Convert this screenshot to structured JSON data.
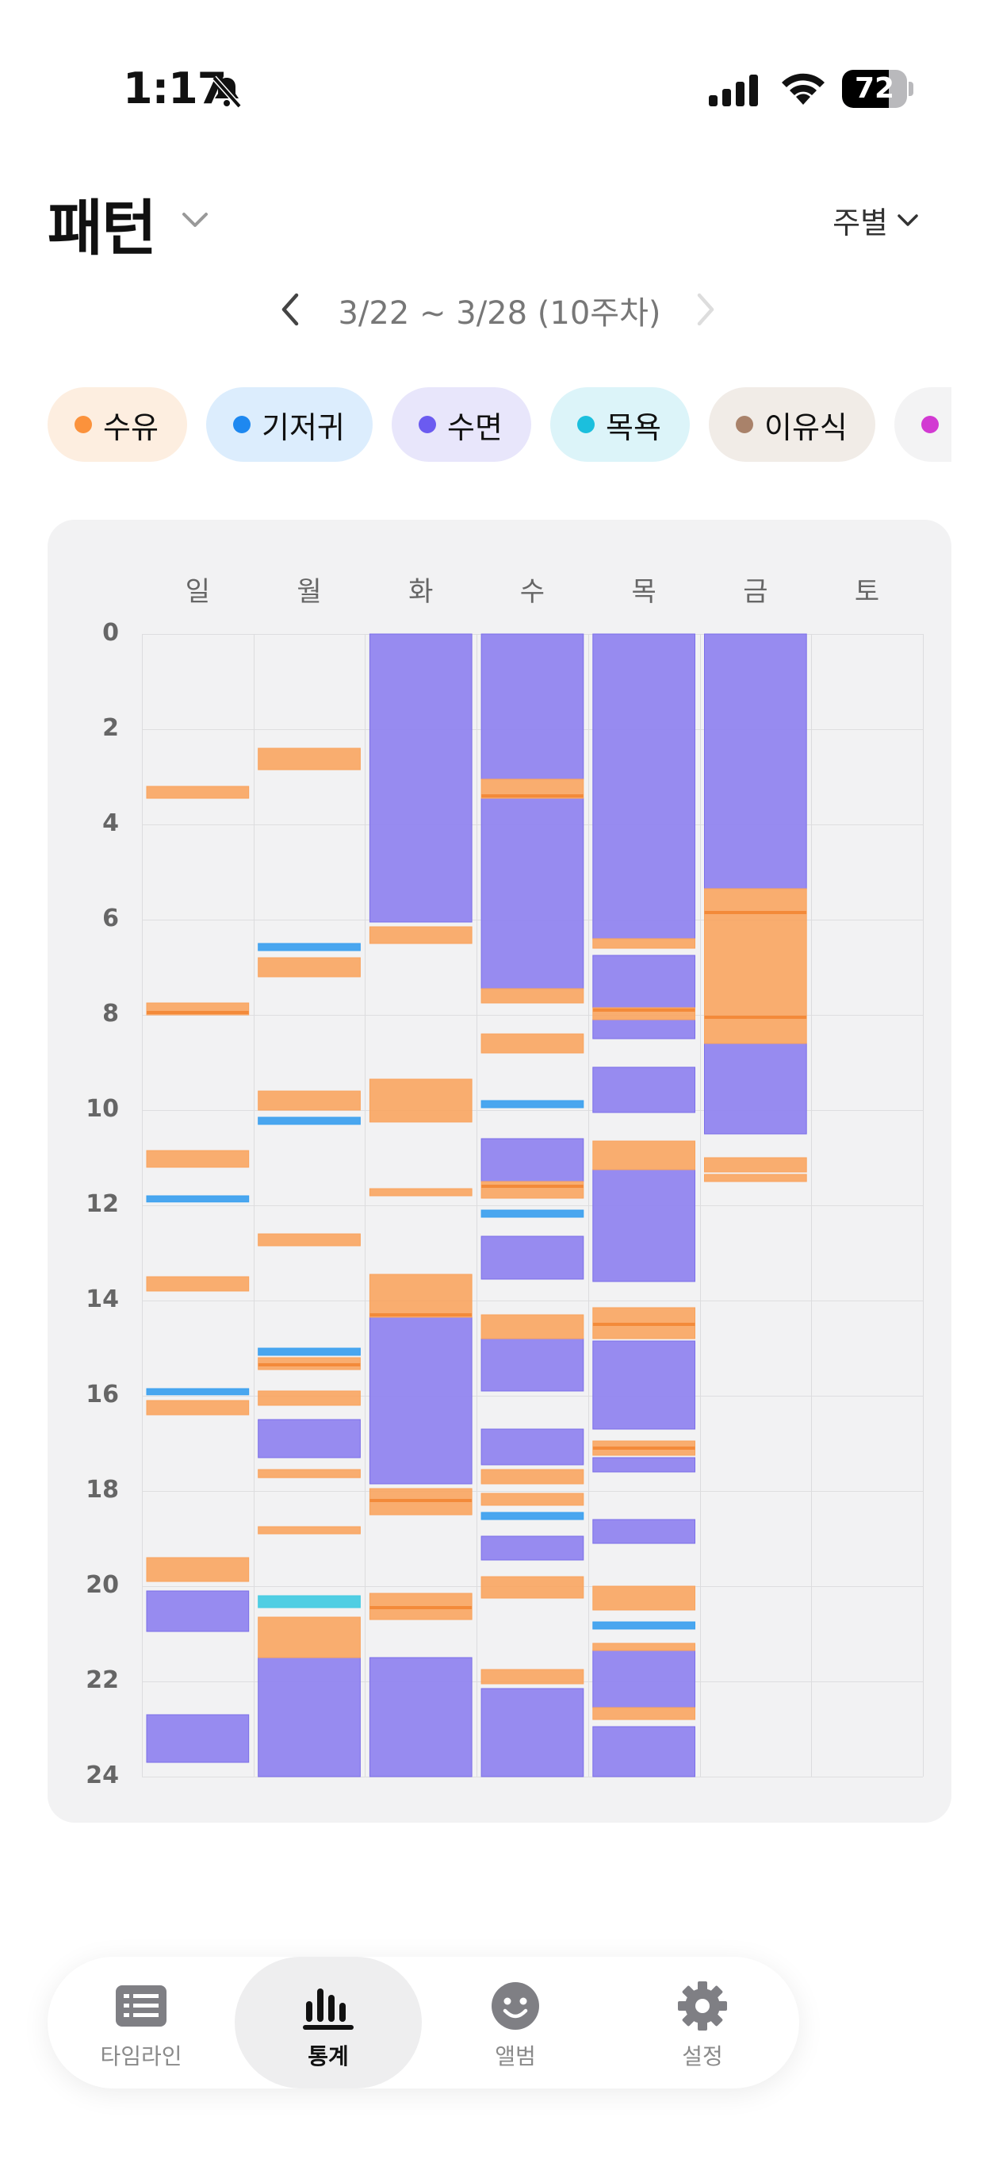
{
  "status_bar": {
    "time": "1:17",
    "battery": "72",
    "battery_level": 0.72,
    "icons": [
      "bell-slash-icon",
      "signal-icon",
      "wifi-icon",
      "battery-icon"
    ]
  },
  "header": {
    "title": "패턴",
    "period": "주별",
    "date_range": "3/22 ~ 3/28 (10주차)"
  },
  "filters": [
    {
      "label": "수유",
      "color": "#fb923c",
      "bg": "#fdeee0"
    },
    {
      "label": "기저귀",
      "color": "#1e88f0",
      "bg": "#dcedfd"
    },
    {
      "label": "수면",
      "color": "#6b5bf0",
      "bg": "#e8e6fb"
    },
    {
      "label": "목욕",
      "color": "#1bbfdd",
      "bg": "#dcf4f9"
    },
    {
      "label": "이유식",
      "color": "#a9826a",
      "bg": "#f1ece7"
    },
    {
      "label": "",
      "color": "#d23ad2",
      "bg": "#f3f3f4"
    }
  ],
  "chart_data": {
    "type": "timeline",
    "days": [
      "일",
      "월",
      "화",
      "수",
      "목",
      "금",
      "토"
    ],
    "y_ticks": [
      "0",
      "2",
      "4",
      "6",
      "8",
      "10",
      "12",
      "14",
      "16",
      "18",
      "20",
      "22",
      "24"
    ],
    "ylim": [
      0,
      24
    ],
    "colors": {
      "feed": "#f9a35c",
      "feed_line": "#f38a3a",
      "diaper": "#3ba0ef",
      "sleep": "#8f82f0",
      "bath": "#42cbe2"
    },
    "events": [
      {
        "day": 0,
        "type": "feed",
        "start": 3.2,
        "end": 3.45
      },
      {
        "day": 0,
        "type": "feed",
        "start": 7.75,
        "end": 8.0
      },
      {
        "day": 0,
        "type": "feed",
        "start": 10.85,
        "end": 11.2
      },
      {
        "day": 0,
        "type": "diaper",
        "start": 11.8,
        "end": 11.93
      },
      {
        "day": 0,
        "type": "feed",
        "start": 13.5,
        "end": 13.8
      },
      {
        "day": 0,
        "type": "diaper",
        "start": 15.85,
        "end": 15.98
      },
      {
        "day": 0,
        "type": "feed",
        "start": 16.1,
        "end": 16.4
      },
      {
        "day": 0,
        "type": "feed",
        "start": 19.4,
        "end": 19.9
      },
      {
        "day": 0,
        "type": "sleep",
        "start": 20.1,
        "end": 20.95
      },
      {
        "day": 0,
        "type": "sleep",
        "start": 22.7,
        "end": 23.7
      },
      {
        "day": 1,
        "type": "feed",
        "start": 2.4,
        "end": 2.85
      },
      {
        "day": 1,
        "type": "diaper",
        "start": 6.5,
        "end": 6.65
      },
      {
        "day": 1,
        "type": "feed",
        "start": 6.8,
        "end": 7.2
      },
      {
        "day": 1,
        "type": "feed",
        "start": 9.6,
        "end": 10.0
      },
      {
        "day": 1,
        "type": "diaper",
        "start": 10.15,
        "end": 10.3
      },
      {
        "day": 1,
        "type": "feed",
        "start": 12.6,
        "end": 12.85
      },
      {
        "day": 1,
        "type": "diaper",
        "start": 15.0,
        "end": 15.15
      },
      {
        "day": 1,
        "type": "feed",
        "start": 15.2,
        "end": 15.45
      },
      {
        "day": 1,
        "type": "feed",
        "start": 15.9,
        "end": 16.2
      },
      {
        "day": 1,
        "type": "sleep",
        "start": 16.5,
        "end": 17.3
      },
      {
        "day": 1,
        "type": "feed",
        "start": 17.55,
        "end": 17.72
      },
      {
        "day": 1,
        "type": "feed",
        "start": 18.75,
        "end": 18.9
      },
      {
        "day": 1,
        "type": "bath",
        "start": 20.2,
        "end": 20.45
      },
      {
        "day": 1,
        "type": "feed",
        "start": 20.65,
        "end": 21.5
      },
      {
        "day": 1,
        "type": "sleep",
        "start": 21.5,
        "end": 24.0
      },
      {
        "day": 2,
        "type": "sleep",
        "start": 0.0,
        "end": 6.05
      },
      {
        "day": 2,
        "type": "feed",
        "start": 6.15,
        "end": 6.5
      },
      {
        "day": 2,
        "type": "feed",
        "start": 9.35,
        "end": 10.25
      },
      {
        "day": 2,
        "type": "feed",
        "start": 11.65,
        "end": 11.8
      },
      {
        "day": 2,
        "type": "feed",
        "start": 13.45,
        "end": 14.35
      },
      {
        "day": 2,
        "type": "sleep",
        "start": 14.35,
        "end": 17.85
      },
      {
        "day": 2,
        "type": "feed",
        "start": 17.95,
        "end": 18.5
      },
      {
        "day": 2,
        "type": "feed",
        "start": 20.15,
        "end": 20.7
      },
      {
        "day": 2,
        "type": "sleep",
        "start": 21.5,
        "end": 24.0
      },
      {
        "day": 3,
        "type": "sleep",
        "start": 0.0,
        "end": 3.05
      },
      {
        "day": 3,
        "type": "feed",
        "start": 3.05,
        "end": 3.45
      },
      {
        "day": 3,
        "type": "sleep",
        "start": 3.45,
        "end": 7.45
      },
      {
        "day": 3,
        "type": "feed",
        "start": 7.45,
        "end": 7.75
      },
      {
        "day": 3,
        "type": "feed",
        "start": 8.4,
        "end": 8.8
      },
      {
        "day": 3,
        "type": "diaper",
        "start": 9.8,
        "end": 9.95
      },
      {
        "day": 3,
        "type": "sleep",
        "start": 10.6,
        "end": 11.5
      },
      {
        "day": 3,
        "type": "feed",
        "start": 11.5,
        "end": 11.85
      },
      {
        "day": 3,
        "type": "diaper",
        "start": 12.1,
        "end": 12.25
      },
      {
        "day": 3,
        "type": "sleep",
        "start": 12.65,
        "end": 13.55
      },
      {
        "day": 3,
        "type": "feed",
        "start": 14.3,
        "end": 14.8
      },
      {
        "day": 3,
        "type": "sleep",
        "start": 14.8,
        "end": 15.9
      },
      {
        "day": 3,
        "type": "sleep",
        "start": 16.7,
        "end": 17.45
      },
      {
        "day": 3,
        "type": "feed",
        "start": 17.55,
        "end": 17.85
      },
      {
        "day": 3,
        "type": "feed",
        "start": 18.05,
        "end": 18.3
      },
      {
        "day": 3,
        "type": "diaper",
        "start": 18.45,
        "end": 18.6
      },
      {
        "day": 3,
        "type": "sleep",
        "start": 18.95,
        "end": 19.45
      },
      {
        "day": 3,
        "type": "feed",
        "start": 19.8,
        "end": 20.25
      },
      {
        "day": 3,
        "type": "feed",
        "start": 21.75,
        "end": 22.05
      },
      {
        "day": 3,
        "type": "sleep",
        "start": 22.15,
        "end": 24.0
      },
      {
        "day": 4,
        "type": "sleep",
        "start": 0.0,
        "end": 6.4
      },
      {
        "day": 4,
        "type": "feed",
        "start": 6.4,
        "end": 6.6
      },
      {
        "day": 4,
        "type": "sleep",
        "start": 6.75,
        "end": 7.85
      },
      {
        "day": 4,
        "type": "feed",
        "start": 7.85,
        "end": 8.1
      },
      {
        "day": 4,
        "type": "sleep",
        "start": 8.1,
        "end": 8.5
      },
      {
        "day": 4,
        "type": "sleep",
        "start": 9.1,
        "end": 10.05
      },
      {
        "day": 4,
        "type": "feed",
        "start": 10.65,
        "end": 11.25
      },
      {
        "day": 4,
        "type": "sleep",
        "start": 11.25,
        "end": 13.6
      },
      {
        "day": 4,
        "type": "feed",
        "start": 14.15,
        "end": 14.8
      },
      {
        "day": 4,
        "type": "sleep",
        "start": 14.85,
        "end": 16.7
      },
      {
        "day": 4,
        "type": "feed",
        "start": 16.95,
        "end": 17.25
      },
      {
        "day": 4,
        "type": "sleep",
        "start": 17.3,
        "end": 17.6
      },
      {
        "day": 4,
        "type": "sleep",
        "start": 18.6,
        "end": 19.1
      },
      {
        "day": 4,
        "type": "feed",
        "start": 20.0,
        "end": 20.5
      },
      {
        "day": 4,
        "type": "diaper",
        "start": 20.75,
        "end": 20.9
      },
      {
        "day": 4,
        "type": "feed",
        "start": 21.2,
        "end": 21.35
      },
      {
        "day": 4,
        "type": "sleep",
        "start": 21.35,
        "end": 22.55
      },
      {
        "day": 4,
        "type": "feed",
        "start": 22.55,
        "end": 22.8
      },
      {
        "day": 4,
        "type": "sleep",
        "start": 22.95,
        "end": 24.0
      },
      {
        "day": 5,
        "type": "sleep",
        "start": 0.0,
        "end": 5.35
      },
      {
        "day": 5,
        "type": "feed",
        "start": 5.35,
        "end": 8.6
      },
      {
        "day": 5,
        "type": "sleep",
        "start": 8.6,
        "end": 10.5
      },
      {
        "day": 5,
        "type": "feed",
        "start": 11.0,
        "end": 11.3
      },
      {
        "day": 5,
        "type": "feed",
        "start": 11.35,
        "end": 11.5
      }
    ],
    "lines": [
      {
        "day": 0,
        "at": 7.95
      },
      {
        "day": 1,
        "at": 15.35
      },
      {
        "day": 2,
        "at": 14.3
      },
      {
        "day": 2,
        "at": 18.2
      },
      {
        "day": 2,
        "at": 20.45
      },
      {
        "day": 3,
        "at": 3.4
      },
      {
        "day": 3,
        "at": 11.6
      },
      {
        "day": 4,
        "at": 7.9
      },
      {
        "day": 4,
        "at": 14.5
      },
      {
        "day": 4,
        "at": 17.1
      },
      {
        "day": 5,
        "at": 5.85
      },
      {
        "day": 5,
        "at": 8.05
      }
    ]
  },
  "tabbar": {
    "items": [
      {
        "label": "타임라인",
        "icon": "list-icon",
        "active": false
      },
      {
        "label": "통계",
        "icon": "bar-chart-icon",
        "active": true
      },
      {
        "label": "앨범",
        "icon": "smiley-icon",
        "active": false
      },
      {
        "label": "설정",
        "icon": "gear-icon",
        "active": false
      }
    ]
  }
}
